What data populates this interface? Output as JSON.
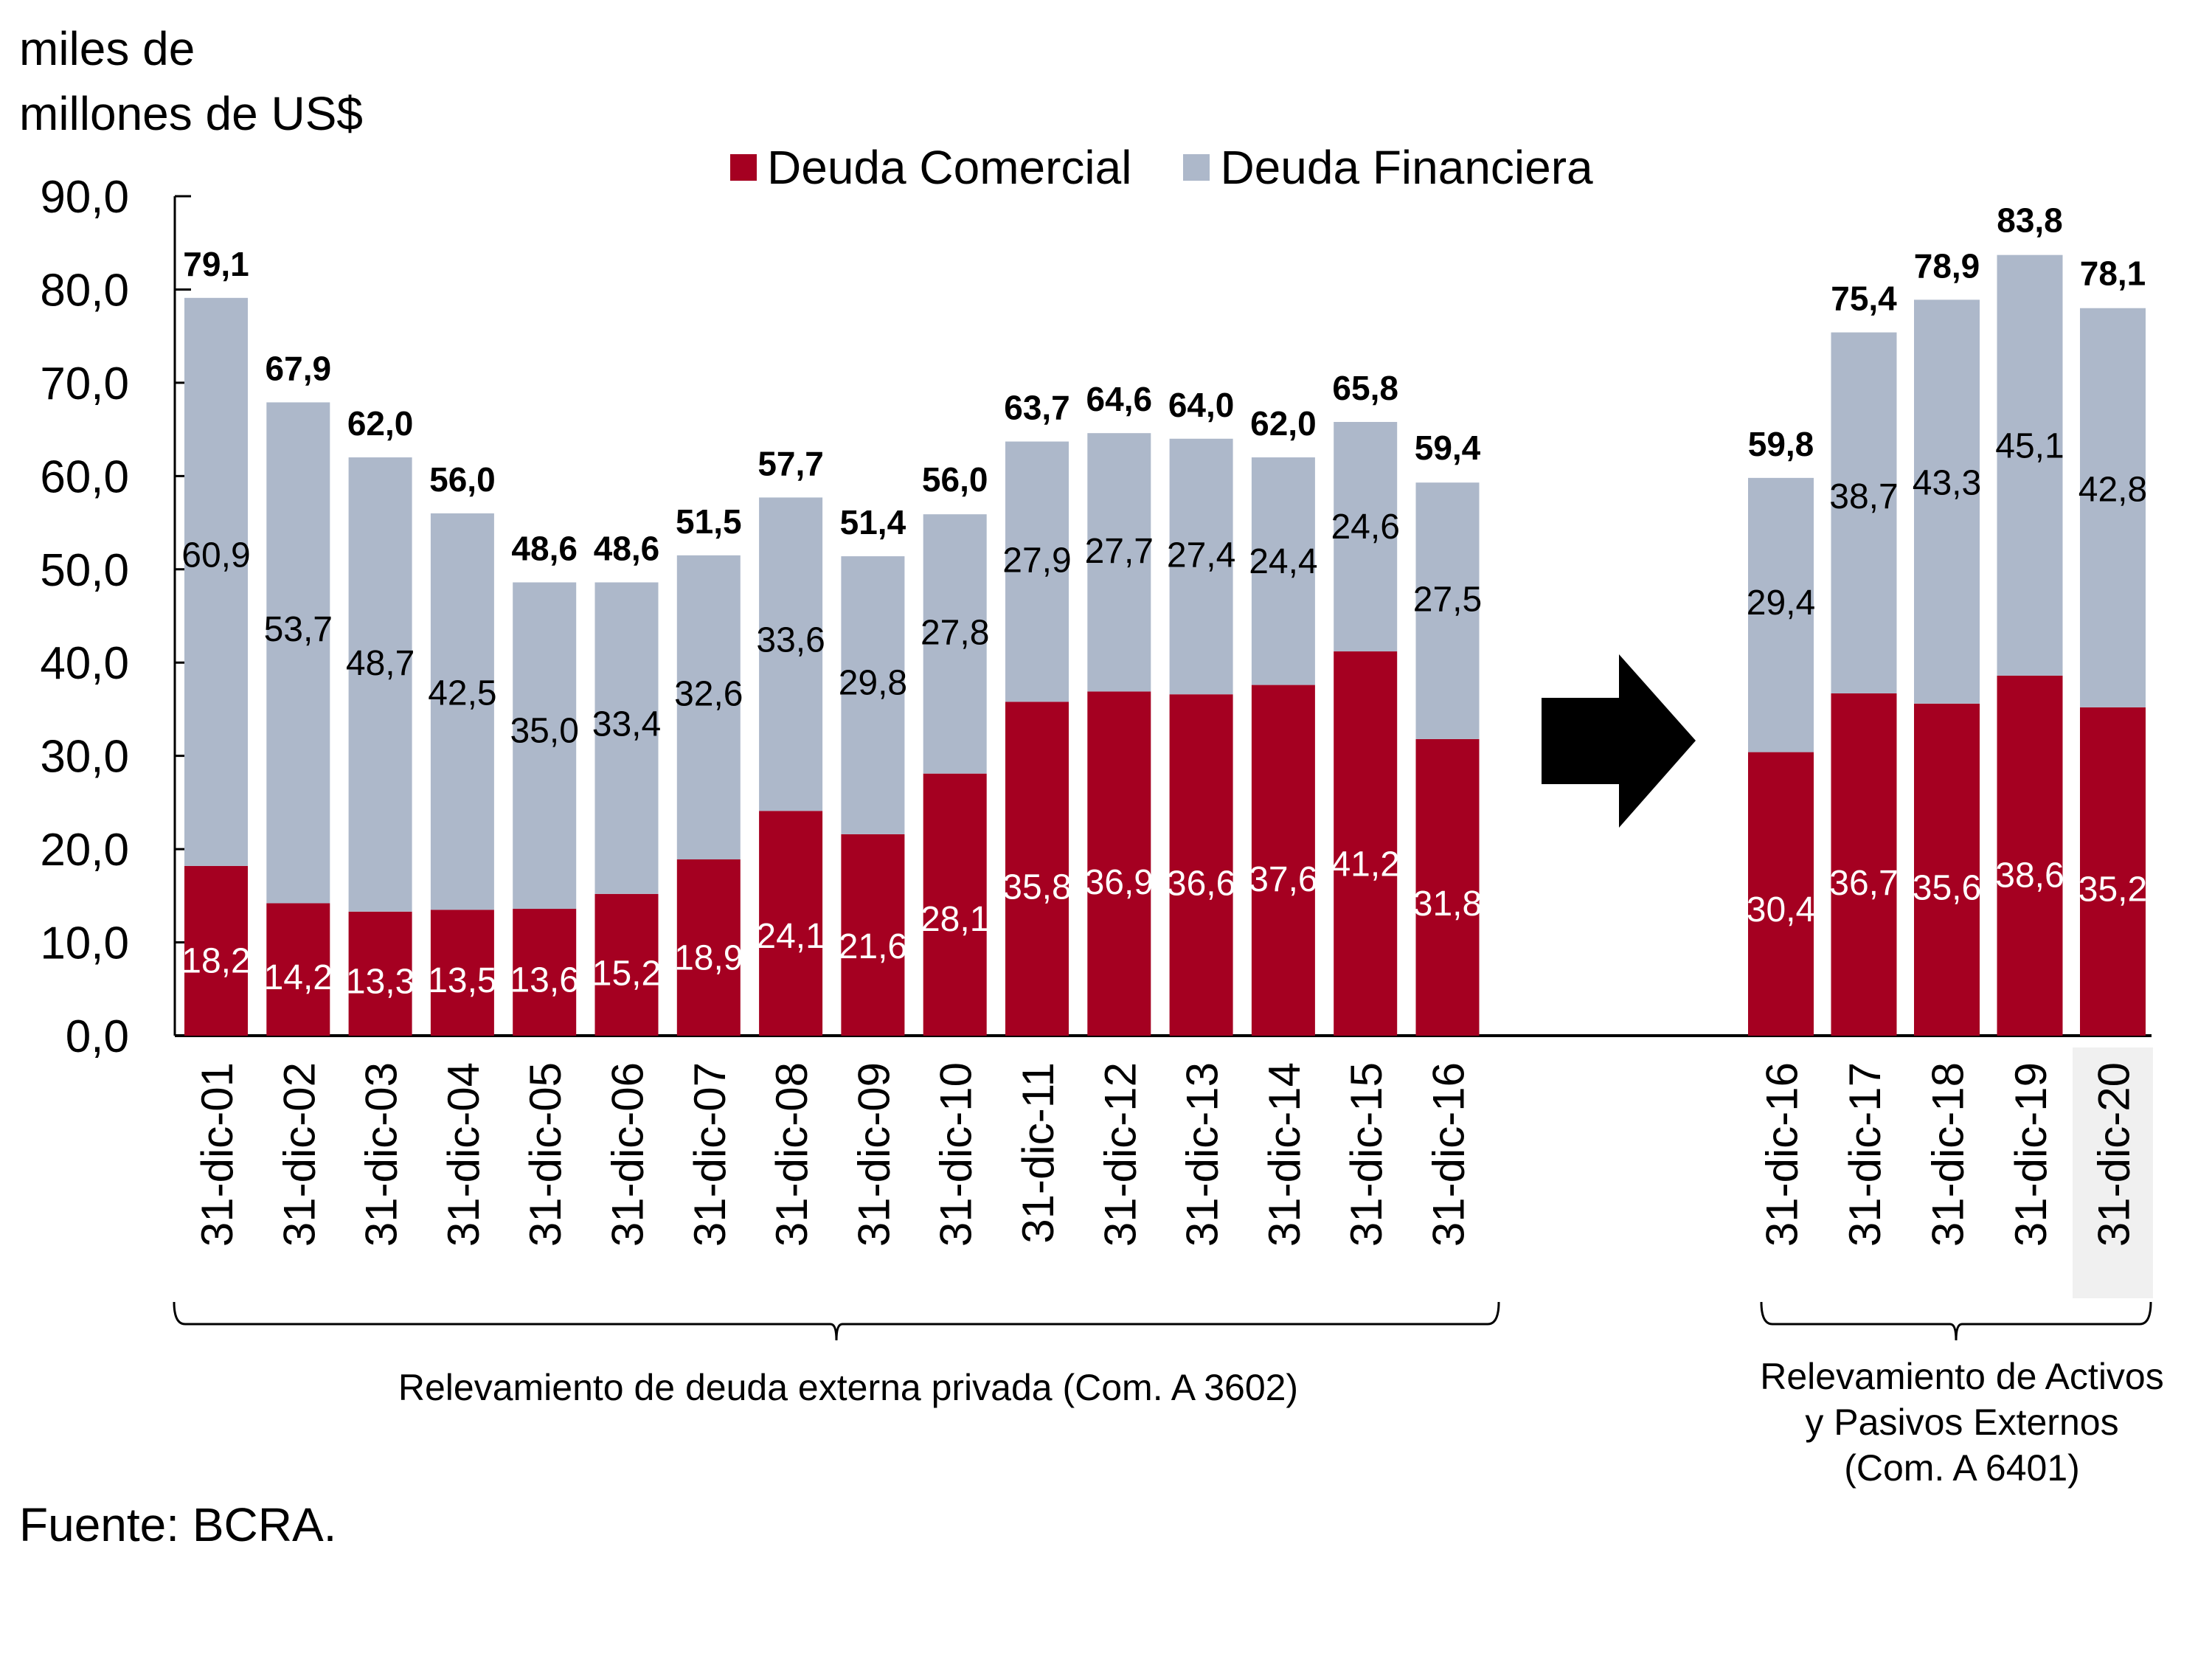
{
  "chart_data": {
    "type": "bar",
    "stacked": true,
    "title": "",
    "ylabel": "miles de millones de US$",
    "xlabel": "",
    "ylim": [
      0,
      90
    ],
    "yticks": [
      "0,0",
      "10,0",
      "20,0",
      "30,0",
      "40,0",
      "50,0",
      "60,0",
      "70,0",
      "80,0",
      "90,0"
    ],
    "ytick_values": [
      0,
      10,
      20,
      30,
      40,
      50,
      60,
      70,
      80,
      90
    ],
    "grid": false,
    "legend_position": "top-center",
    "groups": [
      {
        "name": "Relevamiento de deuda externa privada (Com. A 3602)",
        "categories": [
          "31-dic-01",
          "31-dic-02",
          "31-dic-03",
          "31-dic-04",
          "31-dic-05",
          "31-dic-06",
          "31-dic-07",
          "31-dic-08",
          "31-dic-09",
          "31-dic-10",
          "31-dic-11",
          "31-dic-12",
          "31-dic-13",
          "31-dic-14",
          "31-dic-15",
          "31-dic-16"
        ],
        "series": [
          {
            "name": "Deuda Comercial",
            "color": "#a50021",
            "labels": [
              "18,2",
              "14,2",
              "13,3",
              "13,5",
              "13,6",
              "15,2",
              "18,9",
              "24,1",
              "21,6",
              "28,1",
              "35,8",
              "36,9",
              "36,6",
              "37,6",
              "41,2",
              "31,8"
            ],
            "values": [
              18.2,
              14.2,
              13.3,
              13.5,
              13.6,
              15.2,
              18.9,
              24.1,
              21.6,
              28.1,
              35.8,
              36.9,
              36.6,
              37.6,
              41.2,
              31.8
            ]
          },
          {
            "name": "Deuda Financiera",
            "color": "#adb8ca",
            "labels": [
              "60,9",
              "53,7",
              "48,7",
              "42,5",
              "35,0",
              "33,4",
              "32,6",
              "33,6",
              "29,8",
              "27,8",
              "27,9",
              "27,7",
              "27,4",
              "24,4",
              "24,6",
              "27,5"
            ],
            "values": [
              60.9,
              53.7,
              48.7,
              42.5,
              35.0,
              33.4,
              32.6,
              33.6,
              29.8,
              27.8,
              27.9,
              27.7,
              27.4,
              24.4,
              24.6,
              27.5
            ]
          }
        ],
        "totals": [
          79.1,
          67.9,
          62.0,
          56.0,
          48.6,
          48.6,
          51.5,
          57.7,
          51.4,
          56.0,
          63.7,
          64.6,
          64.0,
          62.0,
          65.8,
          59.4
        ],
        "total_labels": [
          "79,1",
          "67,9",
          "62,0",
          "56,0",
          "48,6",
          "48,6",
          "51,5",
          "57,7",
          "51,4",
          "56,0",
          "63,7",
          "64,6",
          "64,0",
          "62,0",
          "65,8",
          "59,4"
        ]
      },
      {
        "name": "Relevamiento de Activos y Pasivos Externos (Com. A 6401)",
        "categories": [
          "31-dic-16",
          "31-dic-17",
          "31-dic-18",
          "31-dic-19",
          "31-dic-20"
        ],
        "series": [
          {
            "name": "Deuda Comercial",
            "color": "#a50021",
            "labels": [
              "30,4",
              "36,7",
              "35,6",
              "38,6",
              "35,2"
            ],
            "values": [
              30.4,
              36.7,
              35.6,
              38.6,
              35.2
            ]
          },
          {
            "name": "Deuda Financiera",
            "color": "#adb8ca",
            "labels": [
              "29,4",
              "38,7",
              "43,3",
              "45,1",
              "42,8"
            ],
            "values": [
              29.4,
              38.7,
              43.3,
              45.1,
              42.8
            ]
          }
        ],
        "totals": [
          59.8,
          75.4,
          78.9,
          83.8,
          78.1
        ],
        "total_labels": [
          "59,8",
          "75,4",
          "78,9",
          "83,8",
          "78,1"
        ],
        "highlighted_category": "31-dic-20"
      }
    ],
    "legend": [
      "Deuda Comercial",
      "Deuda Financiera"
    ],
    "annotations": [
      "arrow-right between groups"
    ]
  },
  "labels": {
    "unit_line1": "miles de",
    "unit_line2": "millones de US$",
    "legend_comercial": "Deuda Comercial",
    "legend_financiera": "Deuda Financiera",
    "group1_note": "Relevamiento de deuda externa privada (Com. A 3602)",
    "group2_note_line1": "Relevamiento de Activos",
    "group2_note_line2": "y Pasivos Externos",
    "group2_note_line3": "(Com. A 6401)",
    "source": "Fuente: BCRA."
  },
  "colors": {
    "comercial": "#a50021",
    "financiera": "#adb8ca",
    "highlight_bg": "#f0f0f0"
  }
}
